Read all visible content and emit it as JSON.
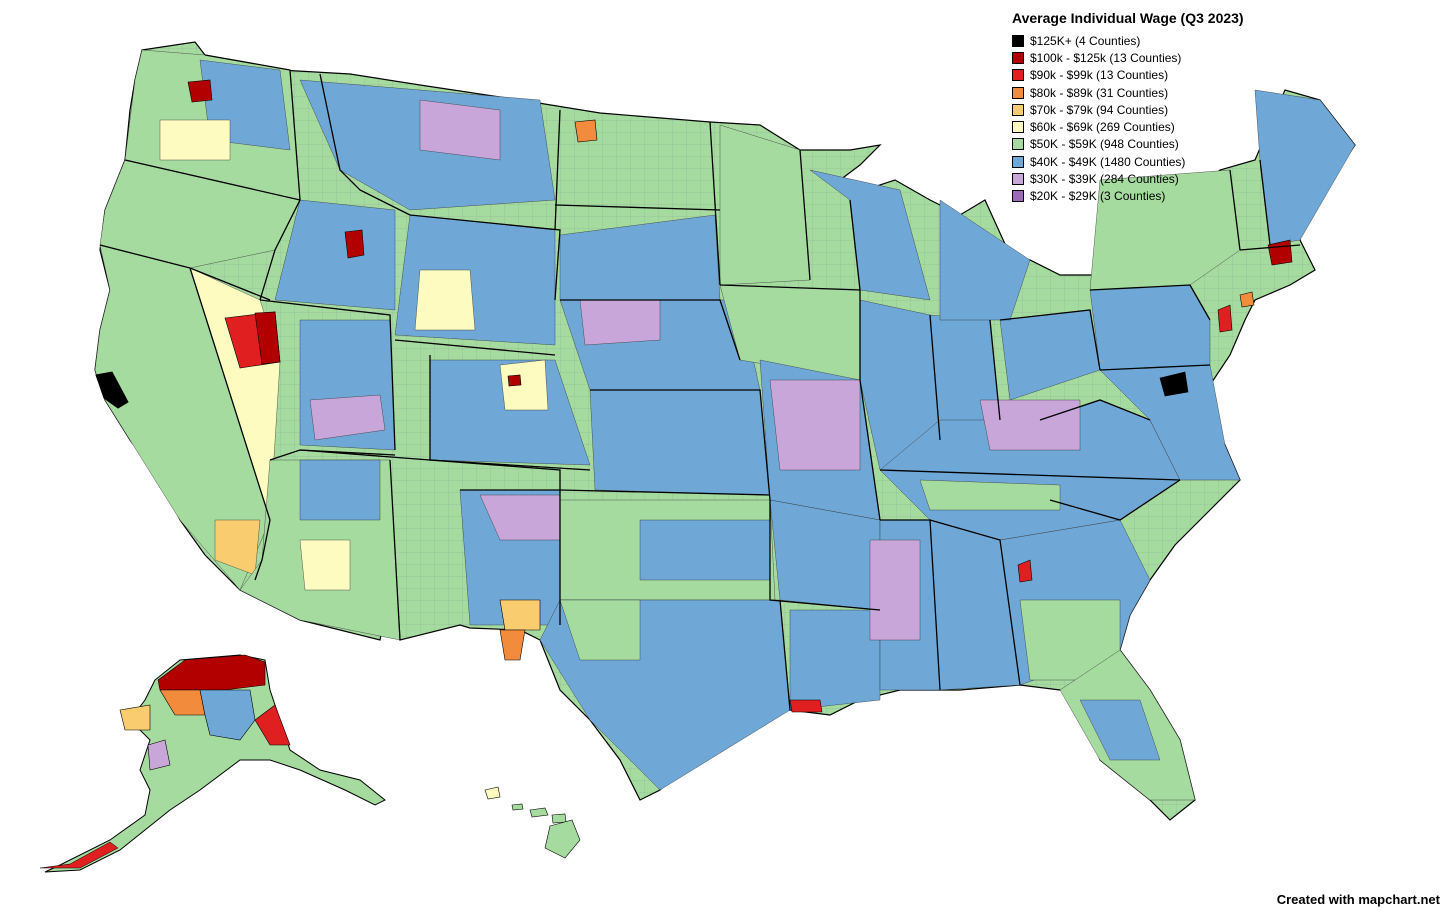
{
  "legend": {
    "title": "Average Individual Wage (Q3 2023)",
    "items": [
      {
        "label": "$125K+ (4 Counties)",
        "color": "#000000"
      },
      {
        "label": "$100k - $125k (13 Counties)",
        "color": "#b20000"
      },
      {
        "label": "$90k - $99k (13 Counties)",
        "color": "#e02020"
      },
      {
        "label": "$80k - $89k (31 Counties)",
        "color": "#f38b3c"
      },
      {
        "label": "$70k - $79k (94 Counties)",
        "color": "#f9cd6f"
      },
      {
        "label": "$60k - $69k (269 Counties)",
        "color": "#fdfbc0"
      },
      {
        "label": "$50K - $59K (948 Counties)",
        "color": "#a6dba0"
      },
      {
        "label": "$40K - $49K (1480 Counties)",
        "color": "#6fa8d6"
      },
      {
        "label": "$30K - $39K (284 Counties)",
        "color": "#c9a6d9"
      },
      {
        "label": "$20K - $29K (3 Counties)",
        "color": "#9b6bb5"
      }
    ]
  },
  "credit": "Created with mapchart.net",
  "colors": {
    "background": "#ffffff",
    "border": "#000000",
    "default_fill": "#6fa8d6"
  }
}
